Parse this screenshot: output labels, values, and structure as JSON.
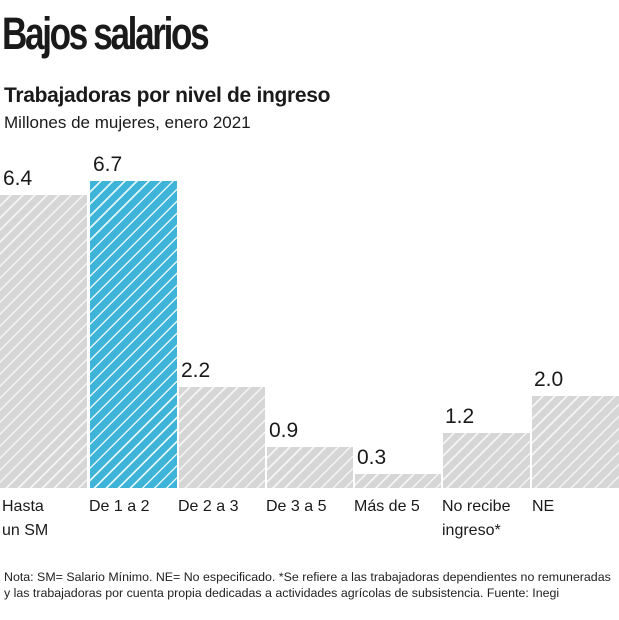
{
  "header": {
    "title": "Bajos salarios",
    "subtitle": "Trabajadoras por nivel de ingreso",
    "unit": "Millones de mujeres, enero 2021"
  },
  "colors": {
    "highlight": "#3db4d8",
    "default": "#d6d6d6"
  },
  "chart_data": {
    "type": "bar",
    "title": "Trabajadoras por nivel de ingreso",
    "subtitle": "Millones de mujeres, enero 2021",
    "categories": [
      "Hasta un SM",
      "De 1 a 2",
      "De 2 a 3",
      "De 3 a 5",
      "Más de 5",
      "No recibe ingreso*",
      "NE"
    ],
    "values": [
      6.4,
      6.7,
      2.2,
      0.9,
      0.3,
      1.2,
      2.0
    ],
    "value_labels": [
      "6.4",
      "6.7",
      "2.2",
      "0.9",
      "0.3",
      "1.2",
      "2.0"
    ],
    "highlighted_index": 1,
    "xlabel": "",
    "ylabel": "Millones de mujeres",
    "ylim": [
      0,
      6.7
    ],
    "grid": false,
    "legend": null
  },
  "bars": [
    {
      "label": "Hasta\nun SM",
      "value": "6.4"
    },
    {
      "label": "De 1 a 2",
      "value": "6.7"
    },
    {
      "label": "De 2 a 3",
      "value": "2.2"
    },
    {
      "label": "De 3 a 5",
      "value": "0.9"
    },
    {
      "label": "Más de 5",
      "value": "0.3"
    },
    {
      "label": "No recibe\ningreso*",
      "value": "1.2"
    },
    {
      "label": "NE",
      "value": "2.0"
    }
  ],
  "footer": {
    "note": "Nota: SM= Salario Mínimo. NE= No especificado. *Se refiere a las trabajadoras dependientes no remuneradas y las trabajadoras por cuenta propia dedicadas a actividades agrícolas de subsistencia. Fuente: Inegi"
  }
}
